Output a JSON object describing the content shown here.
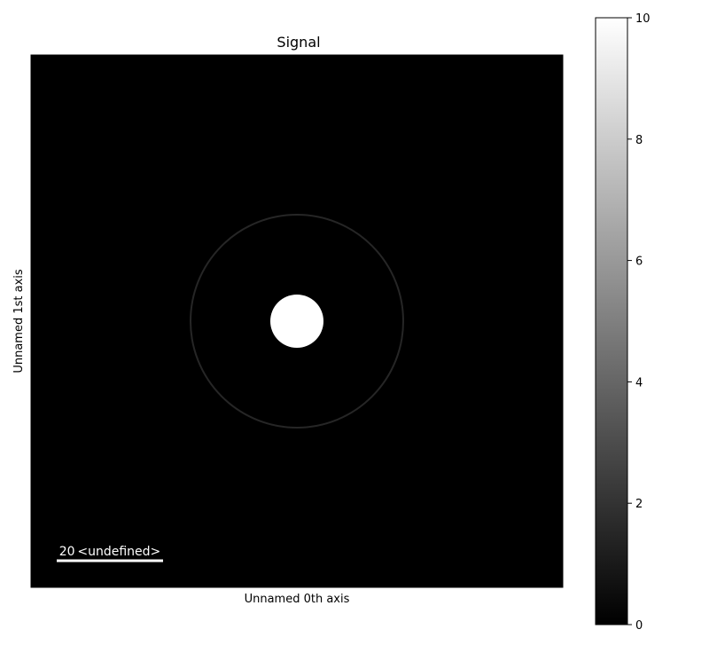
{
  "chart_data": {
    "type": "heatmap",
    "title": "Signal",
    "xlabel": "Unnamed 0th axis",
    "ylabel": "Unnamed 1st axis",
    "colormap": "gray",
    "value_range": [
      0,
      10
    ],
    "background_value": 0,
    "features": [
      {
        "shape": "disk",
        "center": [
          50,
          50
        ],
        "radius": 5,
        "value": 10
      },
      {
        "shape": "ring",
        "center": [
          50,
          50
        ],
        "radius": 20,
        "value": 1.5
      }
    ],
    "image_extent": {
      "x": [
        0,
        100
      ],
      "y": [
        0,
        100
      ]
    },
    "colorbar": {
      "ticks": [
        0,
        2,
        4,
        6,
        8,
        10
      ],
      "tick_labels": [
        "0",
        "2",
        "4",
        "6",
        "8",
        "10"
      ]
    },
    "scalebar": {
      "value": "20",
      "units": "<undefined>",
      "length": 20,
      "color": "#ffffff"
    }
  }
}
